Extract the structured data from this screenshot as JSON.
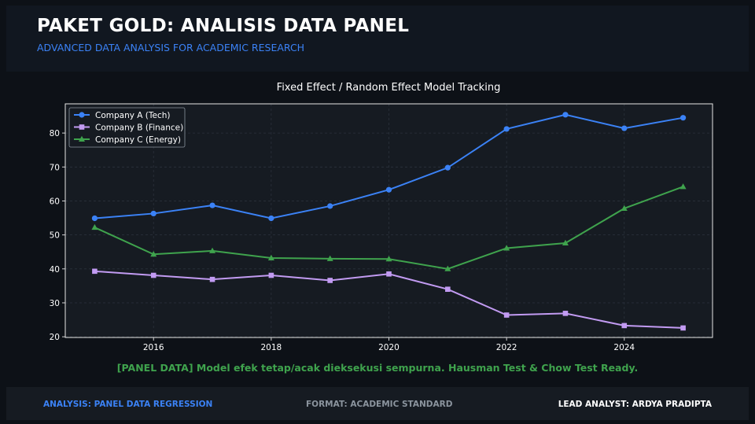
{
  "header": {
    "title": "PAKET GOLD: ANALISIS DATA PANEL",
    "subtitle": "ADVANCED DATA ANALYSIS FOR ACADEMIC RESEARCH"
  },
  "chart_data": {
    "type": "line",
    "title": "Fixed Effect / Random Effect Model Tracking",
    "xlabel": "",
    "ylabel": "",
    "x": [
      2015,
      2016,
      2017,
      2018,
      2019,
      2020,
      2021,
      2022,
      2023,
      2024,
      2025
    ],
    "xlim": [
      2014.5,
      2025.5
    ],
    "ylim": [
      19.8,
      88.6
    ],
    "xticks": [
      2016,
      2018,
      2020,
      2022,
      2024
    ],
    "yticks": [
      20,
      30,
      40,
      50,
      60,
      70,
      80
    ],
    "grid": true,
    "legend_position": "top-left",
    "series": [
      {
        "name": "Company A (Tech)",
        "color": "#3b82f6",
        "marker": "circle",
        "values": [
          54.9,
          56.3,
          58.7,
          54.9,
          58.5,
          63.3,
          69.8,
          81.2,
          85.4,
          81.4,
          84.5
        ]
      },
      {
        "name": "Company B (Finance)",
        "color": "#c29bf2",
        "marker": "square",
        "values": [
          39.3,
          38.1,
          36.9,
          38.1,
          36.6,
          38.5,
          34.0,
          26.4,
          26.9,
          23.3,
          22.6
        ]
      },
      {
        "name": "Company C (Energy)",
        "color": "#3fa34d",
        "marker": "triangle",
        "values": [
          52.2,
          44.3,
          45.3,
          43.2,
          43.0,
          42.9,
          40.0,
          46.1,
          47.6,
          57.8,
          64.2
        ]
      }
    ]
  },
  "footnote": "[PANEL DATA] Model efek tetap/acak dieksekusi sempurna. Hausman Test & Chow Test Ready.",
  "footer": {
    "left": "ANALYSIS: PANEL DATA REGRESSION",
    "middle": "FORMAT: ACADEMIC STANDARD",
    "right": "LEAD ANALYST: ARDYA PRADIPTA"
  },
  "colors": {
    "background": "#0d1117",
    "panel": "#111720",
    "plot_background": "#161b22",
    "accent_blue": "#3b82f6",
    "accent_green": "#3fa34d",
    "muted": "#8b949e"
  }
}
